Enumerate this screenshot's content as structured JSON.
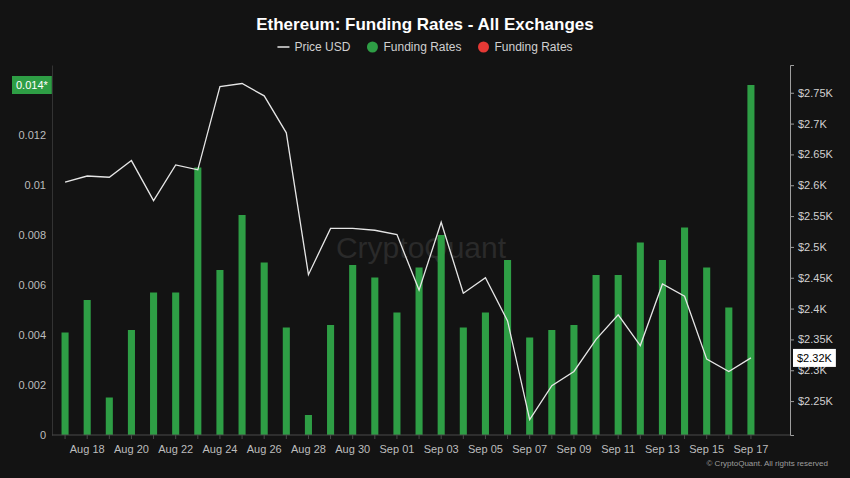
{
  "chart_data": {
    "type": "bar",
    "title": "Ethereum: Funding Rates - All Exchanges",
    "watermark": "CryptoQuant",
    "source": "© CryptoQuant. All rights reserved",
    "categories": [
      null,
      "Aug 18",
      null,
      "Aug 20",
      null,
      "Aug 22",
      null,
      "Aug 24",
      null,
      "Aug 26",
      null,
      "Aug 28",
      null,
      "Aug 30",
      null,
      "Sep 01",
      null,
      "Sep 03",
      null,
      "Sep 05",
      null,
      "Sep 07",
      null,
      "Sep 09",
      null,
      "Sep 11",
      null,
      "Sep 13",
      null,
      "Sep 15",
      null,
      "Sep 17"
    ],
    "series": [
      {
        "name": "Price USD",
        "type": "line",
        "axis": "y2",
        "color": "#e6e6e6",
        "marker": "line",
        "values": [
          2605,
          2615,
          2613,
          2640,
          2575,
          2633,
          2625,
          2760,
          2765,
          2745,
          2685,
          2455,
          2530,
          2530,
          2527,
          2520,
          2430,
          2540,
          2425,
          2450,
          2380,
          2220,
          2275,
          2298,
          2350,
          2390,
          2340,
          2440,
          2420,
          2318,
          2298,
          2320
        ]
      },
      {
        "name": "Funding Rates",
        "type": "bar",
        "color": "#2e9e45",
        "marker": "circle",
        "values": [
          0.0041,
          0.0054,
          0.0015,
          0.0042,
          0.0057,
          0.0057,
          0.0107,
          0.0066,
          0.0088,
          0.0069,
          0.0043,
          0.0008,
          0.0044,
          0.0068,
          0.0063,
          0.0049,
          0.0067,
          0.008,
          0.0043,
          0.0049,
          0.007,
          0.0039,
          0.0042,
          0.0044,
          0.0064,
          0.0064,
          0.0077,
          0.007,
          0.0083,
          0.0067,
          0.0051,
          0.014
        ]
      },
      {
        "name": "Funding Rates",
        "type": "bar",
        "color": "#e53935",
        "marker": "circle",
        "values": [
          null,
          null,
          null,
          null,
          null,
          null,
          null,
          null,
          null,
          null,
          null,
          null,
          null,
          null,
          null,
          null,
          null,
          null,
          null,
          null,
          null,
          null,
          null,
          null,
          null,
          null,
          null,
          null,
          null,
          null,
          null,
          null
        ]
      }
    ],
    "ylim": [
      0,
      0.0148
    ],
    "yticks": [
      0,
      0.002,
      0.004,
      0.006,
      0.008,
      0.01,
      0.012
    ],
    "y2lim": [
      2195,
      2795
    ],
    "y2ticks": [
      {
        "value": 2250,
        "label": "$2.25K"
      },
      {
        "value": 2300,
        "label": "$2.3K"
      },
      {
        "value": 2350,
        "label": "$2.35K"
      },
      {
        "value": 2400,
        "label": "$2.4K"
      },
      {
        "value": 2450,
        "label": "$2.45K"
      },
      {
        "value": 2500,
        "label": "$2.5K"
      },
      {
        "value": 2550,
        "label": "$2.55K"
      },
      {
        "value": 2600,
        "label": "$2.6K"
      },
      {
        "value": 2650,
        "label": "$2.65K"
      },
      {
        "value": 2700,
        "label": "$2.7K"
      },
      {
        "value": 2750,
        "label": "$2.75K"
      }
    ],
    "annotations": [
      {
        "text": "0.014*",
        "value": 0.014,
        "axis": "y",
        "color": "#2e9e45"
      },
      {
        "text": "$2.32K",
        "value": 2320,
        "axis": "y2",
        "color": "#ffffff"
      }
    ],
    "grid": false,
    "legend": "top"
  }
}
